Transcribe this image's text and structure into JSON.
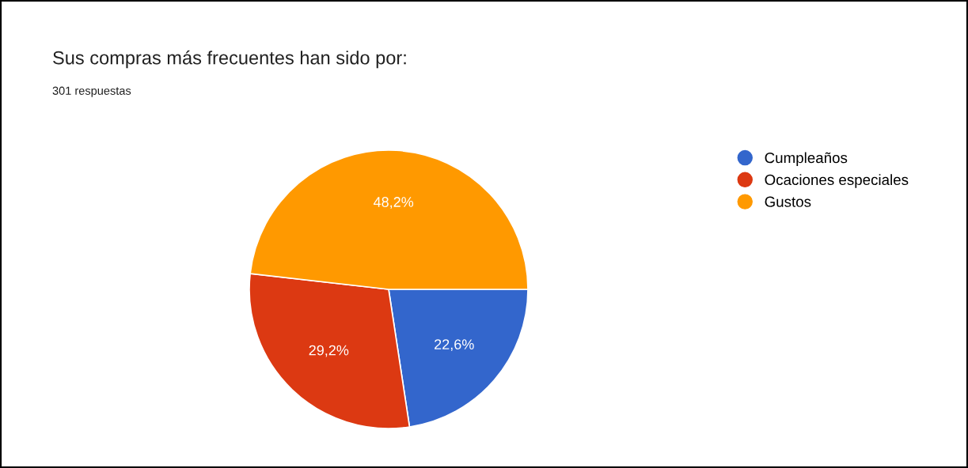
{
  "chart_data": {
    "type": "pie",
    "title": "Sus compras más frecuentes han sido por:",
    "subtitle": "301 respuestas",
    "categories": [
      "Cumpleaños",
      "Ocaciones especiales",
      "Gustos"
    ],
    "values": [
      22.6,
      29.2,
      48.2
    ],
    "colors": [
      "#3366cc",
      "#dc3912",
      "#ff9900"
    ],
    "value_labels": [
      "22,6%",
      "29,2%",
      "48,2%"
    ],
    "legend": "top right"
  }
}
